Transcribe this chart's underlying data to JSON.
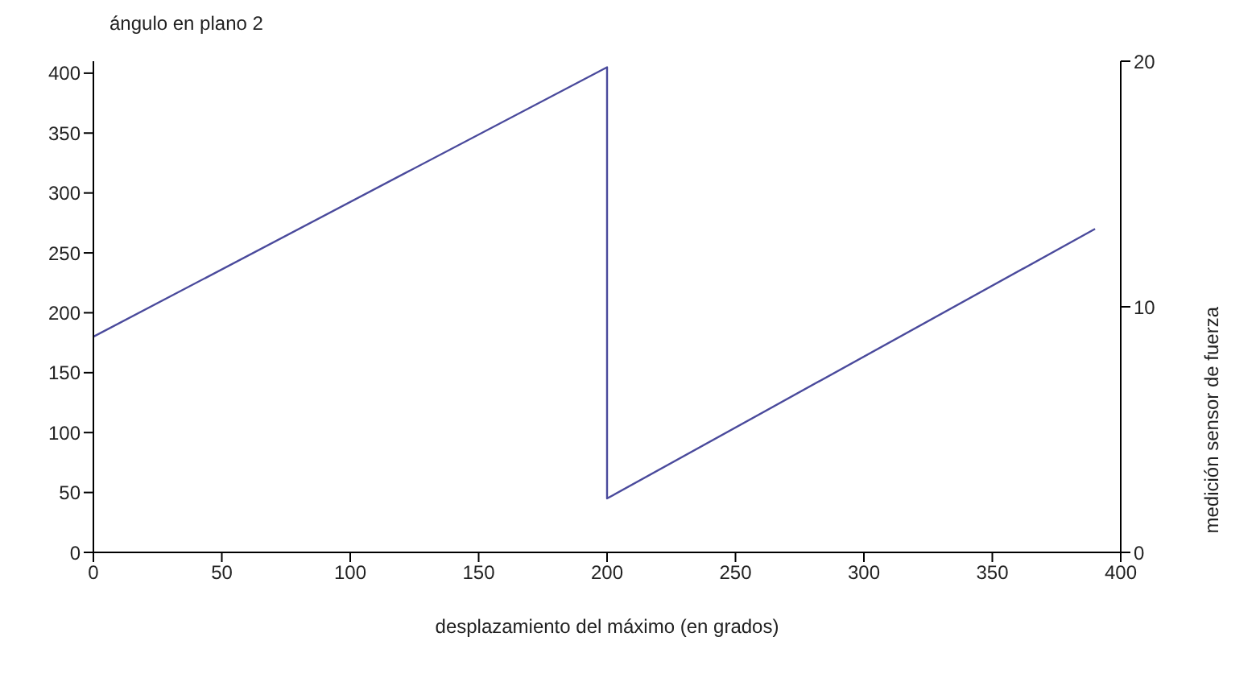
{
  "chart_data": {
    "type": "line",
    "xlabel": "desplazamiento del máximo (en grados)",
    "ylabel": "ángulo en plano 2",
    "y2label": "medición sensor de fuerza",
    "x": [
      0,
      200,
      200,
      390
    ],
    "series": [
      {
        "color": "#4a4a9c",
        "values": [
          180,
          405,
          45,
          270
        ]
      }
    ],
    "xlim": [
      0,
      400
    ],
    "xticks": [
      0,
      50,
      100,
      150,
      200,
      250,
      300,
      350,
      400
    ],
    "ylim": [
      0,
      410
    ],
    "yticks": [
      0,
      50,
      100,
      150,
      200,
      250,
      300,
      350,
      400
    ],
    "y2lim": [
      0,
      20
    ],
    "y2ticks": [
      0,
      10,
      20
    ],
    "grid": false,
    "legend": false,
    "marker": "none",
    "line_style": "solid"
  }
}
